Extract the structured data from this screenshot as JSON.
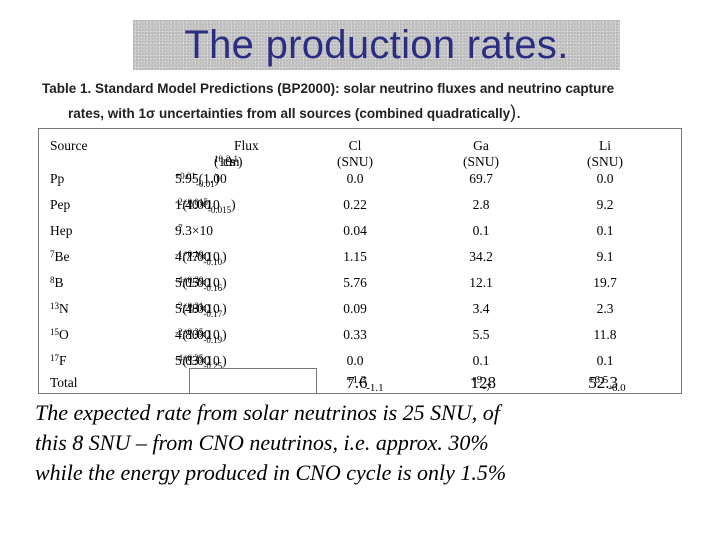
{
  "slide_title": "The production rates.",
  "caption": {
    "line1": "Table 1. Standard Model Predictions (BP2000): solar neutrino fluxes and neutrino capture",
    "line2": "rates, with 1σ uncertainties from all sources (combined quadratically",
    "line2_paren": ")."
  },
  "table": {
    "headers": {
      "source": "Source",
      "flux": "Flux",
      "flux_unit_base": "(10",
      "flux_unit_exp1": "10",
      "flux_unit_mid": " cm",
      "flux_unit_exp2": "-2",
      "flux_unit_s": "s",
      "flux_unit_exp3": "-1",
      "flux_unit_close": ")",
      "cl": "Cl",
      "ga": "Ga",
      "li": "Li",
      "snu": "(SNU)"
    },
    "rows": [
      {
        "src_pre": "",
        "src": "Pp",
        "flux_main": "5.95(1.00",
        "flux_sup": "+0.01",
        "flux_sub": "-0.01",
        "flux_close": ")",
        "cl": "0.0",
        "ga": "69.7",
        "li": "0.0"
      },
      {
        "src_pre": "",
        "src": "Pep",
        "flux_main": "1.40×10",
        "flux_exp": "-2",
        "flux_main2": "(1.00",
        "flux_sup": "+0.015",
        "flux_sub": "-0.015",
        "flux_close": ")",
        "cl": "0.22",
        "ga": "2.8",
        "li": "9.2"
      },
      {
        "src_pre": "",
        "src": "Hep",
        "flux_main": "9.3×10",
        "flux_exp": "-7",
        "cl": "0.04",
        "ga": "0.1",
        "li": "0.1"
      },
      {
        "src_pre": "7",
        "src": "Be",
        "flux_main": "4.77×10",
        "flux_exp": "-1",
        "flux_main2": "(1.00",
        "flux_sup": "+0.10",
        "flux_sub": "-0.10",
        "flux_close": ")",
        "cl": "1.15",
        "ga": "34.2",
        "li": "9.1"
      },
      {
        "src_pre": "8",
        "src": "B",
        "flux_main": "5.05×10",
        "flux_exp": "-4",
        "flux_main2": "(1.00",
        "flux_sup": "+0.20",
        "flux_sub": "-0.16",
        "flux_close": ")",
        "cl": "5.76",
        "ga": "12.1",
        "li": "19.7"
      },
      {
        "src_pre": "13",
        "src": "N",
        "flux_main": "5.48×10",
        "flux_exp": "-2",
        "flux_main2": "(1.00",
        "flux_sup": "+0.21",
        "flux_sub": "-0.17",
        "flux_close": ")",
        "cl": "0.09",
        "ga": "3.4",
        "li": "2.3"
      },
      {
        "src_pre": "15",
        "src": "O",
        "flux_main": "4.80×10",
        "flux_exp": "-2",
        "flux_main2": "(1.00",
        "flux_sup": "+0.25",
        "flux_sub": "-0.19",
        "flux_close": ")",
        "cl": "0.33",
        "ga": "5.5",
        "li": "11.8"
      },
      {
        "src_pre": "17",
        "src": "F",
        "flux_main": "5.63×10",
        "flux_exp": "-4",
        "flux_main2": "(1.00",
        "flux_sup": "+0.25",
        "flux_sub": "-0.25",
        "flux_close": ")",
        "cl": "0.0",
        "ga": "0.1",
        "li": "0.1"
      }
    ],
    "total": {
      "label": "Total",
      "cl_main": "7.6",
      "cl_sup": "+1.3",
      "cl_sub": "-1.1",
      "ga_main": "128",
      "ga_sup": "+9",
      "ga_sub": "-7",
      "li_main": "52.3",
      "li_sup": "+6.5",
      "li_sub": "-6.0"
    }
  },
  "expected_text": {
    "line1": "The expected rate from solar neutrinos is 25 SNU, of",
    "line2": "this 8 SNU – from CNO neutrinos, i.e. approx. 30%",
    "line3": "while the energy produced in CNO cycle is only 1.5%"
  }
}
